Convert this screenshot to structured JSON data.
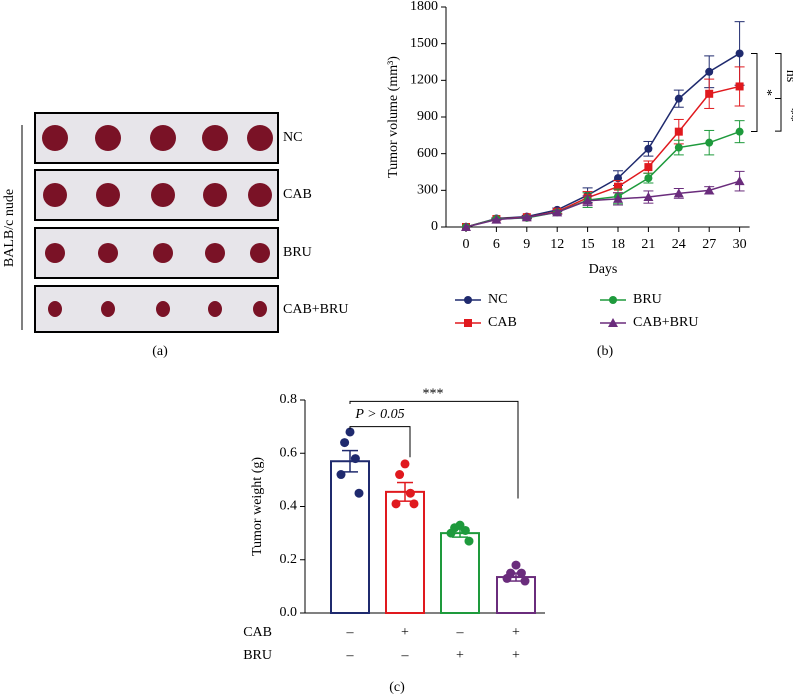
{
  "photo_panel": {
    "side_label": "BALB/c nude",
    "rows": [
      "NC",
      "CAB",
      "BRU",
      "CAB+BRU"
    ],
    "caption": "(a)"
  },
  "chart_data": [
    {
      "type": "line",
      "caption": "(b)",
      "ylabel": "Tumor volume (mm³)",
      "xlabel": "Days",
      "categories": [
        "0",
        "6",
        "9",
        "12",
        "15",
        "18",
        "21",
        "24",
        "27",
        "30"
      ],
      "ylim": [
        0,
        1800
      ],
      "yticks": [
        0,
        300,
        600,
        900,
        1200,
        1500,
        1800
      ],
      "series": [
        {
          "name": "NC",
          "color": "#1f2a6e",
          "marker": "circle",
          "values": [
            0,
            70,
            85,
            140,
            260,
            400,
            640,
            1050,
            1270,
            1420
          ],
          "errors": [
            0,
            5,
            10,
            15,
            60,
            60,
            60,
            70,
            130,
            260
          ]
        },
        {
          "name": "CAB",
          "color": "#e0191e",
          "marker": "square",
          "values": [
            0,
            65,
            80,
            125,
            240,
            330,
            490,
            780,
            1090,
            1150
          ],
          "errors": [
            0,
            5,
            10,
            15,
            50,
            50,
            50,
            100,
            120,
            160
          ]
        },
        {
          "name": "BRU",
          "color": "#1e9a3c",
          "marker": "circle",
          "values": [
            0,
            65,
            75,
            120,
            220,
            250,
            400,
            650,
            690,
            780
          ],
          "errors": [
            0,
            5,
            10,
            15,
            60,
            60,
            40,
            60,
            100,
            90
          ]
        },
        {
          "name": "CAB+BRU",
          "color": "#6a2c7c",
          "marker": "triangle",
          "values": [
            0,
            60,
            80,
            120,
            215,
            230,
            245,
            275,
            300,
            375
          ],
          "errors": [
            0,
            5,
            10,
            15,
            40,
            50,
            50,
            40,
            30,
            80
          ]
        }
      ],
      "annotations": [
        "*",
        "ns",
        "**"
      ]
    },
    {
      "type": "bar",
      "caption": "(c)",
      "ylabel": "Tumor weight (g)",
      "ylim": [
        0,
        0.8
      ],
      "yticks": [
        {
          "value": 0,
          "label": "0.0"
        },
        0.2,
        0.4,
        0.6,
        0.8
      ],
      "values": [
        0.57,
        0.455,
        0.3,
        0.135
      ],
      "errors": [
        0.04,
        0.035,
        0.015,
        0.015
      ],
      "colors": [
        "#1f2a6e",
        "#e0191e",
        "#1e9a3c",
        "#6a2c7c"
      ],
      "points": [
        [
          0.68,
          0.64,
          0.58,
          0.52,
          0.45
        ],
        [
          0.56,
          0.52,
          0.45,
          0.41,
          0.41
        ],
        [
          0.33,
          0.32,
          0.31,
          0.3,
          0.27
        ],
        [
          0.18,
          0.15,
          0.15,
          0.13,
          0.12
        ]
      ],
      "condition_table": {
        "row_labels": [
          "CAB",
          "BRU"
        ],
        "rows": [
          [
            "–",
            "+",
            "–",
            "+"
          ],
          [
            "–",
            "–",
            "+",
            "+"
          ]
        ]
      },
      "annotations": [
        "P > 0.05",
        "***"
      ]
    }
  ]
}
